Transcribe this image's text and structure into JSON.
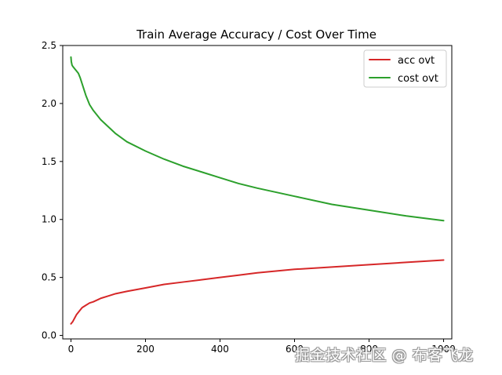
{
  "chart_data": {
    "type": "line",
    "title": "Train Average Accuracy / Cost Over Time",
    "xlabel": "",
    "ylabel": "",
    "xlim": [
      -22,
      1022
    ],
    "ylim": [
      -0.03,
      2.5
    ],
    "xticks": [
      "0",
      "200",
      "400",
      "600",
      "800",
      "1000"
    ],
    "yticks": [
      "0.0",
      "0.5",
      "1.0",
      "1.5",
      "2.0",
      "2.5"
    ],
    "legend_position": "top-right",
    "grid": false,
    "series": [
      {
        "name": "acc ovt",
        "color": "#d62728",
        "x": [
          0,
          5,
          10,
          15,
          20,
          30,
          40,
          50,
          60,
          80,
          100,
          120,
          150,
          200,
          250,
          300,
          350,
          400,
          450,
          500,
          600,
          700,
          800,
          900,
          1000
        ],
        "y": [
          0.1,
          0.12,
          0.15,
          0.18,
          0.2,
          0.24,
          0.26,
          0.28,
          0.29,
          0.32,
          0.34,
          0.36,
          0.38,
          0.41,
          0.44,
          0.46,
          0.48,
          0.5,
          0.52,
          0.54,
          0.57,
          0.59,
          0.61,
          0.63,
          0.65
        ]
      },
      {
        "name": "cost ovt",
        "color": "#2ca02c",
        "x": [
          0,
          1,
          3,
          5,
          10,
          15,
          20,
          25,
          30,
          40,
          50,
          60,
          80,
          100,
          120,
          150,
          200,
          250,
          300,
          350,
          400,
          450,
          500,
          600,
          700,
          800,
          900,
          1000
        ],
        "y": [
          2.4,
          2.36,
          2.33,
          2.32,
          2.3,
          2.28,
          2.26,
          2.22,
          2.17,
          2.07,
          1.99,
          1.94,
          1.86,
          1.8,
          1.74,
          1.67,
          1.59,
          1.52,
          1.46,
          1.41,
          1.36,
          1.31,
          1.27,
          1.2,
          1.13,
          1.08,
          1.03,
          0.99
        ]
      }
    ]
  },
  "watermark": {
    "text": "掘金技术社区 @ 布客飞龙"
  }
}
